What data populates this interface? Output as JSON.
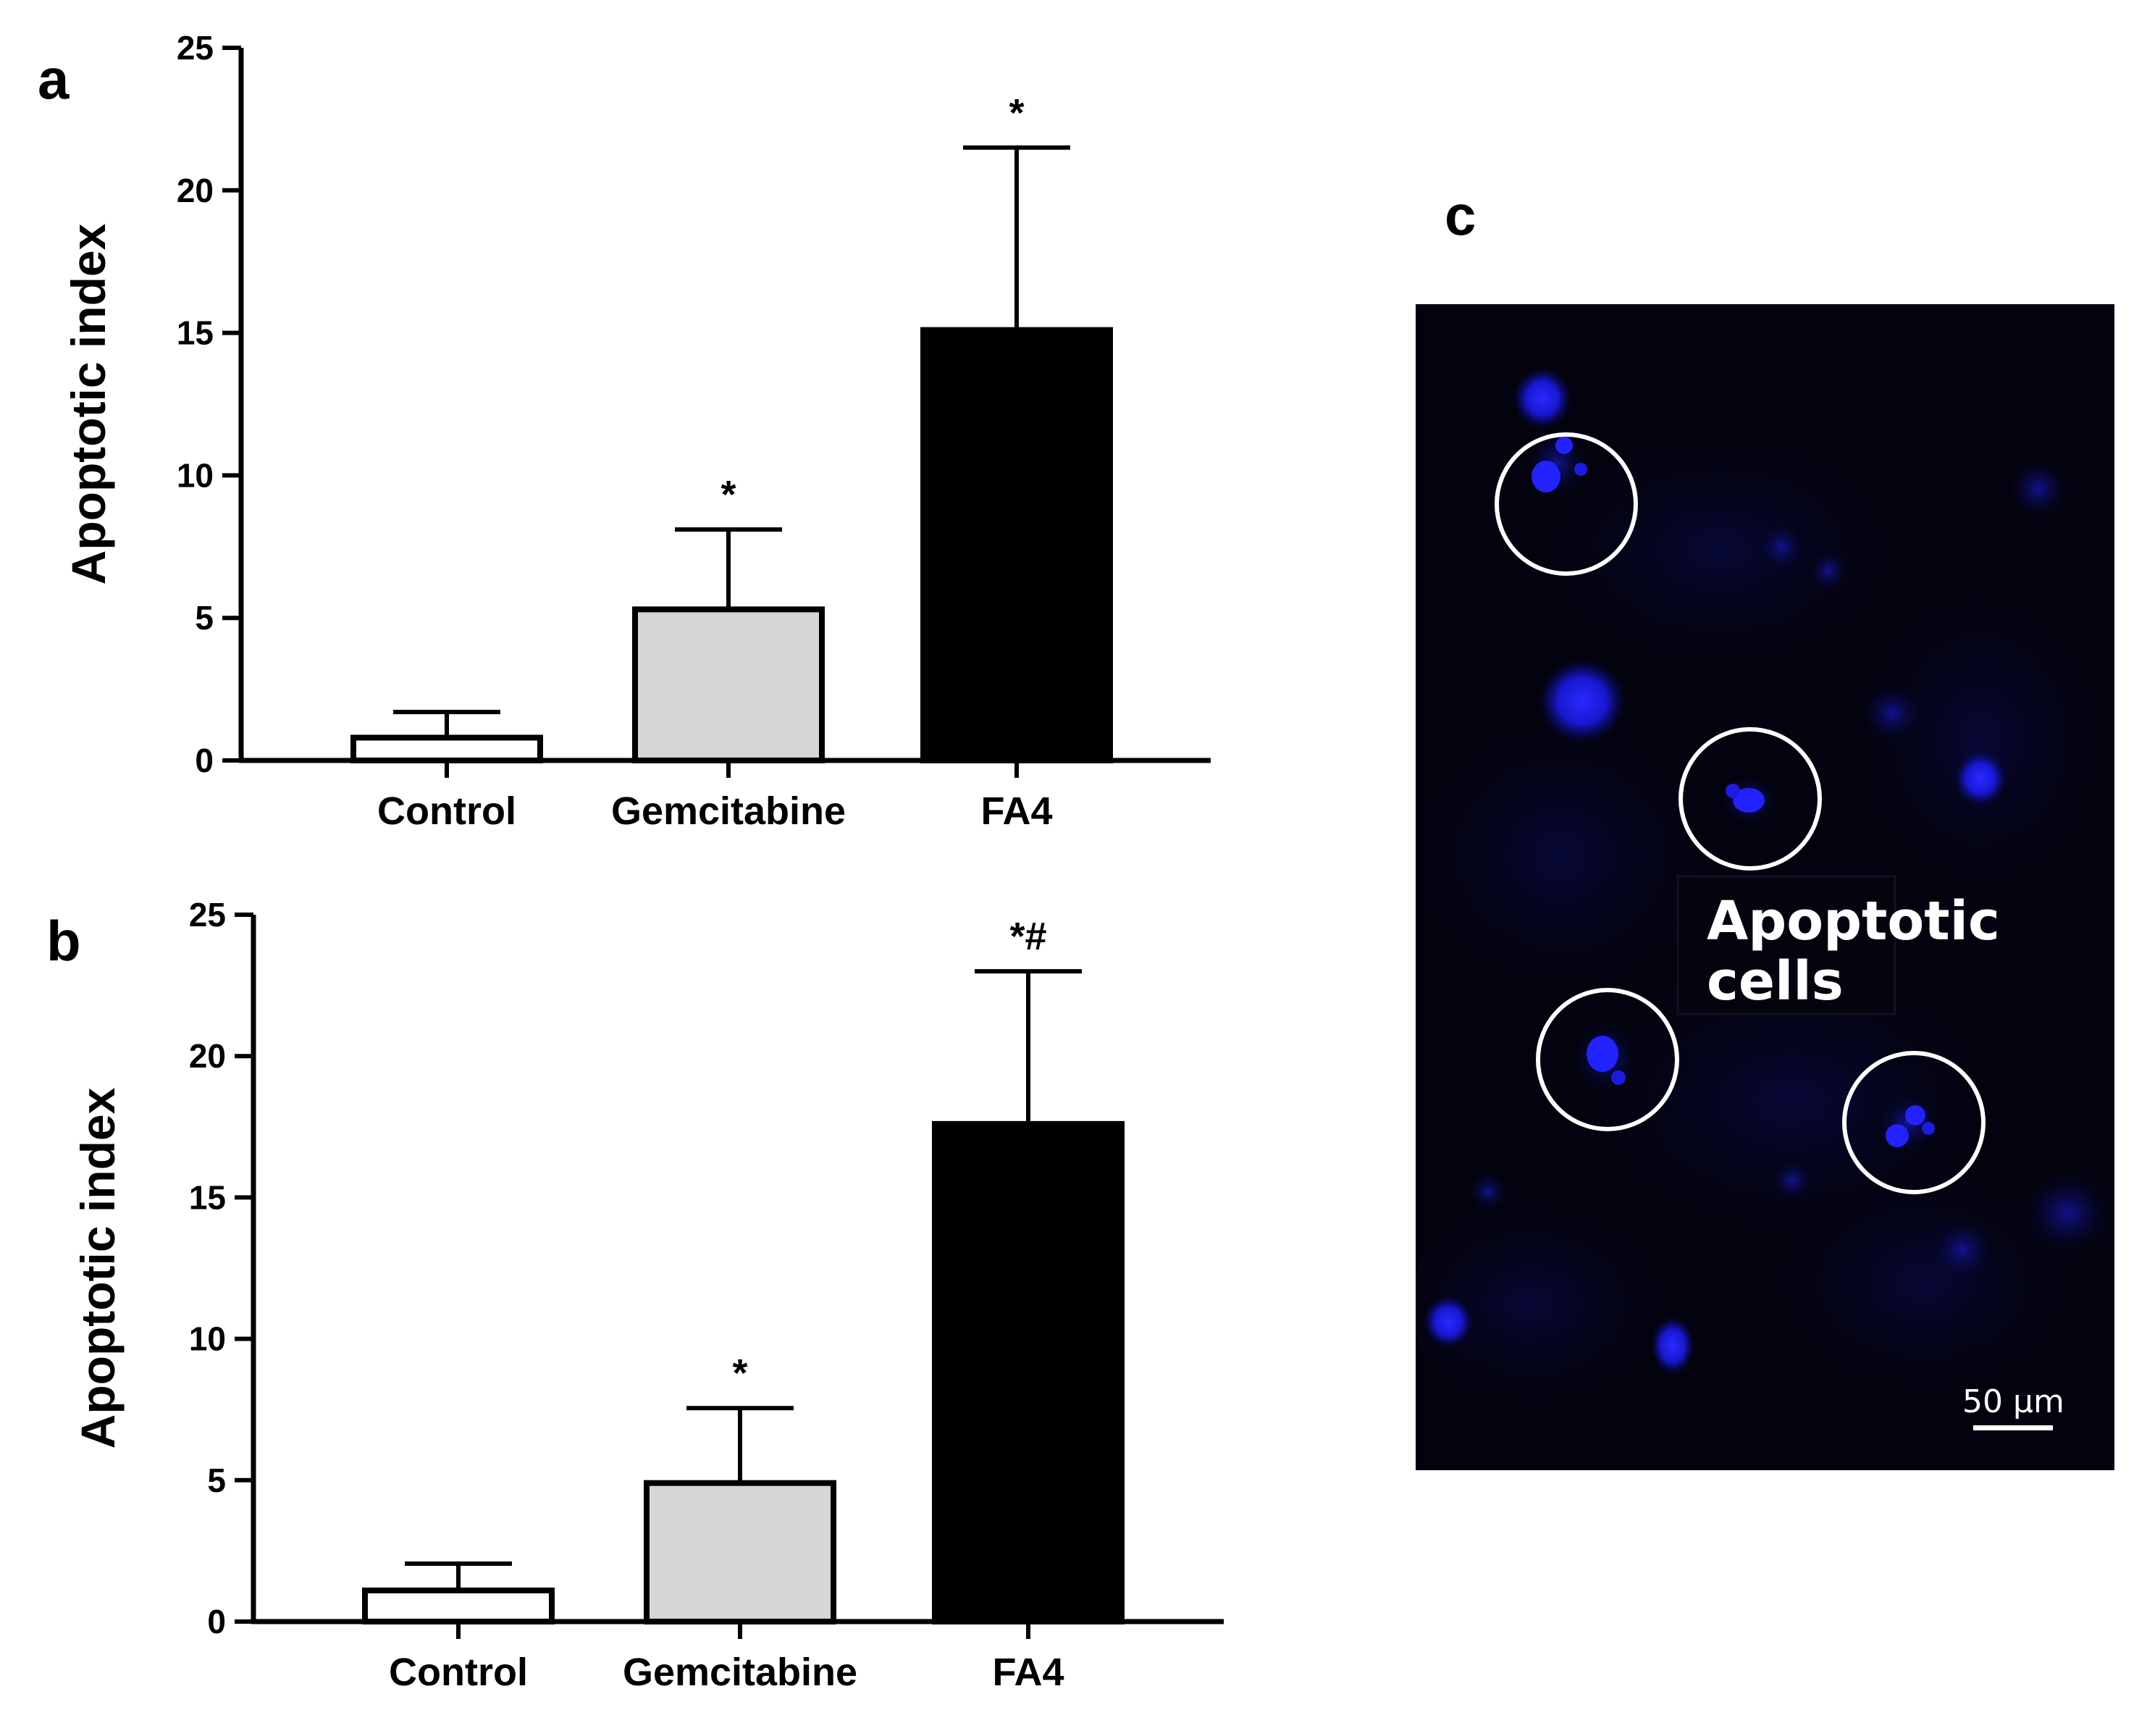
{
  "panel_letters": {
    "a": "a",
    "b": "b",
    "c": "c"
  },
  "colors": {
    "control": "#ffffff",
    "gemcitabine": "#d6d6d6",
    "fa4": "#000000",
    "axis": "#000000"
  },
  "chart_data": [
    {
      "type": "bar",
      "panel": "a",
      "categories": [
        "Control",
        "Gemcitabine",
        "FA4"
      ],
      "values": [
        0.8,
        5.3,
        15.1
      ],
      "errors": [
        0.9,
        2.8,
        6.4
      ],
      "significance": [
        "",
        "*",
        "*"
      ],
      "bar_colors": [
        "#ffffff",
        "#d6d6d6",
        "#000000"
      ],
      "xlabel": "",
      "ylabel": "Apoptotic index",
      "ylim": [
        0,
        25
      ],
      "yticks": [
        0,
        5,
        10,
        15,
        20,
        25
      ],
      "grid": false
    },
    {
      "type": "bar",
      "panel": "b",
      "categories": [
        "Control",
        "Gemcitabine",
        "FA4"
      ],
      "values": [
        1.1,
        4.9,
        17.6
      ],
      "errors": [
        0.95,
        2.65,
        5.4
      ],
      "significance": [
        "",
        "*",
        "*#"
      ],
      "bar_colors": [
        "#ffffff",
        "#d6d6d6",
        "#000000"
      ],
      "xlabel": "",
      "ylabel": "Apoptotic index",
      "ylim": [
        0,
        25
      ],
      "yticks": [
        0,
        5,
        10,
        15,
        20,
        25
      ],
      "grid": false
    }
  ],
  "micrograph": {
    "annotation_line1": "Apoptotic",
    "annotation_line2": "cells",
    "scale_bar_label": "50 µm",
    "stain_color": "#1a1aff"
  }
}
